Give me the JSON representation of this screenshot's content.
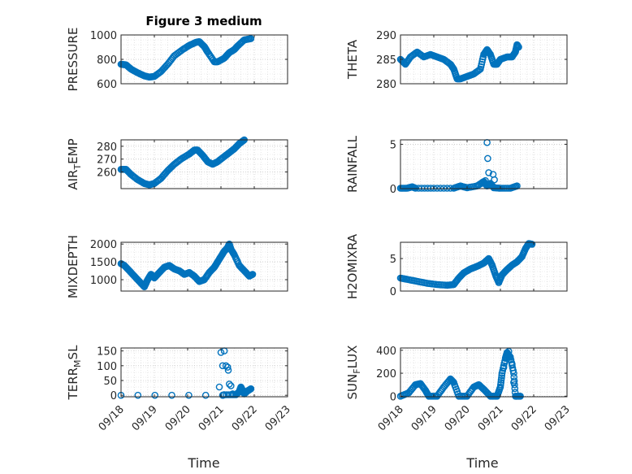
{
  "figure_title": "Figure 3 medium",
  "x_label": "Time",
  "x_tick_labels": [
    "09/18",
    "09/19",
    "09/20",
    "09/21",
    "09/22",
    "09/23"
  ],
  "marker_color": "#0072BD",
  "chart_data": [
    {
      "type": "scatter",
      "title": "Figure 3 medium",
      "ylabel": "PRESSURE",
      "ylim": [
        600,
        1000
      ],
      "yticks": [
        600,
        800,
        1000
      ],
      "xlim": [
        0,
        5
      ],
      "shape": [
        [
          0,
          760
        ],
        [
          0.15,
          755
        ],
        [
          0.3,
          720
        ],
        [
          0.5,
          690
        ],
        [
          0.7,
          665
        ],
        [
          0.85,
          655
        ],
        [
          1.0,
          660
        ],
        [
          1.2,
          700
        ],
        [
          1.4,
          760
        ],
        [
          1.6,
          830
        ],
        [
          1.85,
          880
        ],
        [
          2.05,
          915
        ],
        [
          2.25,
          940
        ],
        [
          2.35,
          945
        ],
        [
          2.5,
          905
        ],
        [
          2.6,
          860
        ],
        [
          2.8,
          780
        ],
        [
          2.9,
          780
        ],
        [
          3.1,
          810
        ],
        [
          3.25,
          855
        ],
        [
          3.4,
          880
        ],
        [
          3.5,
          910
        ],
        [
          3.7,
          960
        ],
        [
          3.9,
          970
        ]
      ],
      "extra": []
    },
    {
      "type": "scatter",
      "ylabel": "THETA",
      "ylim": [
        280,
        290
      ],
      "yticks": [
        280,
        285,
        290
      ],
      "xlim": [
        0,
        5
      ],
      "shape": [
        [
          0,
          285
        ],
        [
          0.15,
          284
        ],
        [
          0.3,
          285.5
        ],
        [
          0.5,
          286.5
        ],
        [
          0.7,
          285.5
        ],
        [
          0.9,
          286
        ],
        [
          1.1,
          285.5
        ],
        [
          1.3,
          285
        ],
        [
          1.5,
          284
        ],
        [
          1.6,
          283
        ],
        [
          1.7,
          281
        ],
        [
          1.8,
          281
        ],
        [
          2.0,
          281.5
        ],
        [
          2.2,
          282
        ],
        [
          2.4,
          283
        ],
        [
          2.5,
          286
        ],
        [
          2.6,
          287
        ],
        [
          2.7,
          286
        ],
        [
          2.8,
          284
        ],
        [
          2.9,
          284
        ],
        [
          3.0,
          285
        ],
        [
          3.2,
          285.5
        ],
        [
          3.35,
          285.5
        ],
        [
          3.45,
          286.5
        ],
        [
          3.5,
          288
        ],
        [
          3.55,
          287.5
        ]
      ],
      "extra": []
    },
    {
      "type": "scatter",
      "ylabel": "AIR_TEMP",
      "ylim": [
        247,
        285
      ],
      "yticks": [
        260,
        270,
        280
      ],
      "xlim": [
        0,
        5
      ],
      "shape": [
        [
          0,
          262
        ],
        [
          0.15,
          262
        ],
        [
          0.3,
          258
        ],
        [
          0.5,
          254
        ],
        [
          0.7,
          251
        ],
        [
          0.85,
          250
        ],
        [
          1.0,
          251
        ],
        [
          1.2,
          255
        ],
        [
          1.4,
          261
        ],
        [
          1.6,
          266
        ],
        [
          1.8,
          270
        ],
        [
          2.05,
          274
        ],
        [
          2.2,
          277
        ],
        [
          2.3,
          277
        ],
        [
          2.45,
          273
        ],
        [
          2.6,
          268
        ],
        [
          2.75,
          266
        ],
        [
          2.9,
          268
        ],
        [
          3.1,
          272
        ],
        [
          3.25,
          275
        ],
        [
          3.4,
          278
        ],
        [
          3.55,
          282
        ],
        [
          3.7,
          285
        ]
      ],
      "extra": []
    },
    {
      "type": "scatter",
      "ylabel": "RAINFALL",
      "ylim": [
        0,
        5.5
      ],
      "yticks": [
        0,
        5
      ],
      "xlim": [
        0,
        5
      ],
      "shape": [
        [
          0,
          0.05
        ],
        [
          0.2,
          0.05
        ],
        [
          0.35,
          0.2
        ],
        [
          0.45,
          0.05
        ],
        [
          1.0,
          0.05
        ],
        [
          1.6,
          0.05
        ],
        [
          1.8,
          0.3
        ],
        [
          2.0,
          0.1
        ],
        [
          2.3,
          0.3
        ],
        [
          2.5,
          0.8
        ],
        [
          2.6,
          0.3
        ],
        [
          2.7,
          0.6
        ],
        [
          2.8,
          0.1
        ],
        [
          3.0,
          0.05
        ],
        [
          3.3,
          0.05
        ],
        [
          3.5,
          0.3
        ]
      ],
      "extra": [
        [
          2.45,
          0.6
        ],
        [
          2.55,
          0.9
        ],
        [
          2.6,
          5.2
        ],
        [
          2.62,
          3.4
        ],
        [
          2.65,
          1.8
        ],
        [
          2.78,
          1.6
        ],
        [
          2.82,
          1.0
        ]
      ]
    },
    {
      "type": "scatter",
      "ylabel": "MIXDEPTH",
      "ylim": [
        680,
        2050
      ],
      "yticks": [
        1000,
        1500,
        2000
      ],
      "xlim": [
        0,
        5
      ],
      "shape": [
        [
          0,
          1450
        ],
        [
          0.1,
          1400
        ],
        [
          0.25,
          1250
        ],
        [
          0.4,
          1100
        ],
        [
          0.55,
          950
        ],
        [
          0.7,
          800
        ],
        [
          0.8,
          1000
        ],
        [
          0.9,
          1150
        ],
        [
          1.0,
          1050
        ],
        [
          1.15,
          1200
        ],
        [
          1.3,
          1350
        ],
        [
          1.45,
          1400
        ],
        [
          1.6,
          1300
        ],
        [
          1.75,
          1250
        ],
        [
          1.9,
          1150
        ],
        [
          2.05,
          1200
        ],
        [
          2.2,
          1100
        ],
        [
          2.35,
          950
        ],
        [
          2.5,
          1000
        ],
        [
          2.65,
          1200
        ],
        [
          2.8,
          1350
        ],
        [
          2.9,
          1500
        ],
        [
          3.0,
          1650
        ],
        [
          3.1,
          1800
        ],
        [
          3.2,
          1900
        ],
        [
          3.25,
          2000
        ],
        [
          3.3,
          1850
        ],
        [
          3.4,
          1700
        ],
        [
          3.55,
          1400
        ],
        [
          3.7,
          1250
        ],
        [
          3.85,
          1100
        ],
        [
          3.95,
          1150
        ]
      ],
      "extra": []
    },
    {
      "type": "scatter",
      "ylabel": "H2OMIXRA",
      "ylim": [
        0,
        7.5
      ],
      "yticks": [
        0,
        5
      ],
      "xlim": [
        0,
        5
      ],
      "shape": [
        [
          0,
          2
        ],
        [
          0.2,
          1.8
        ],
        [
          0.5,
          1.5
        ],
        [
          0.8,
          1.2
        ],
        [
          1.1,
          1.0
        ],
        [
          1.4,
          0.9
        ],
        [
          1.6,
          1.0
        ],
        [
          1.75,
          2.0
        ],
        [
          1.9,
          2.8
        ],
        [
          2.1,
          3.4
        ],
        [
          2.3,
          3.8
        ],
        [
          2.5,
          4.3
        ],
        [
          2.65,
          5.0
        ],
        [
          2.75,
          4.0
        ],
        [
          2.85,
          2.5
        ],
        [
          2.95,
          1.3
        ],
        [
          3.05,
          2.5
        ],
        [
          3.2,
          3.3
        ],
        [
          3.35,
          4.0
        ],
        [
          3.5,
          4.5
        ],
        [
          3.65,
          5.3
        ],
        [
          3.75,
          6.5
        ],
        [
          3.85,
          7.3
        ],
        [
          3.95,
          7.2
        ]
      ],
      "extra": []
    },
    {
      "type": "scatter",
      "ylabel": "TERR_MSL",
      "ylim": [
        -5,
        160
      ],
      "yticks": [
        0,
        50,
        100,
        150
      ],
      "xlim": [
        0,
        5
      ],
      "shape": [
        [
          0,
          0
        ],
        [
          3.05,
          0
        ],
        [
          3.1,
          2
        ],
        [
          3.45,
          2
        ],
        [
          3.55,
          12
        ],
        [
          3.6,
          28
        ],
        [
          3.7,
          5
        ],
        [
          3.8,
          15
        ],
        [
          3.9,
          22
        ]
      ],
      "extra": [
        [
          2.95,
          28
        ],
        [
          3.0,
          145
        ],
        [
          3.05,
          100
        ],
        [
          3.1,
          150
        ],
        [
          3.15,
          100
        ],
        [
          3.2,
          95
        ],
        [
          3.22,
          85
        ],
        [
          3.25,
          38
        ],
        [
          3.3,
          32
        ],
        [
          3.35,
          5
        ]
      ]
    },
    {
      "type": "scatter",
      "ylabel": "SUN_FLUX",
      "ylim": [
        -5,
        420
      ],
      "yticks": [
        0,
        200,
        400
      ],
      "xlim": [
        0,
        5
      ],
      "shape": [
        [
          0,
          0
        ],
        [
          0.25,
          30
        ],
        [
          0.45,
          100
        ],
        [
          0.6,
          110
        ],
        [
          0.75,
          50
        ],
        [
          0.85,
          0
        ],
        [
          1.1,
          0
        ],
        [
          1.3,
          80
        ],
        [
          1.5,
          150
        ],
        [
          1.6,
          120
        ],
        [
          1.75,
          0
        ],
        [
          2.0,
          0
        ],
        [
          2.2,
          80
        ],
        [
          2.35,
          100
        ],
        [
          2.5,
          60
        ],
        [
          2.7,
          0
        ],
        [
          2.9,
          0
        ],
        [
          3.0,
          80
        ],
        [
          3.05,
          200
        ],
        [
          3.15,
          330
        ],
        [
          3.2,
          380
        ],
        [
          3.3,
          340
        ],
        [
          3.4,
          200
        ],
        [
          3.45,
          0
        ],
        [
          3.6,
          0
        ]
      ],
      "extra": [
        [
          3.1,
          250
        ],
        [
          3.25,
          390
        ],
        [
          3.35,
          280
        ],
        [
          3.4,
          120
        ]
      ]
    }
  ]
}
